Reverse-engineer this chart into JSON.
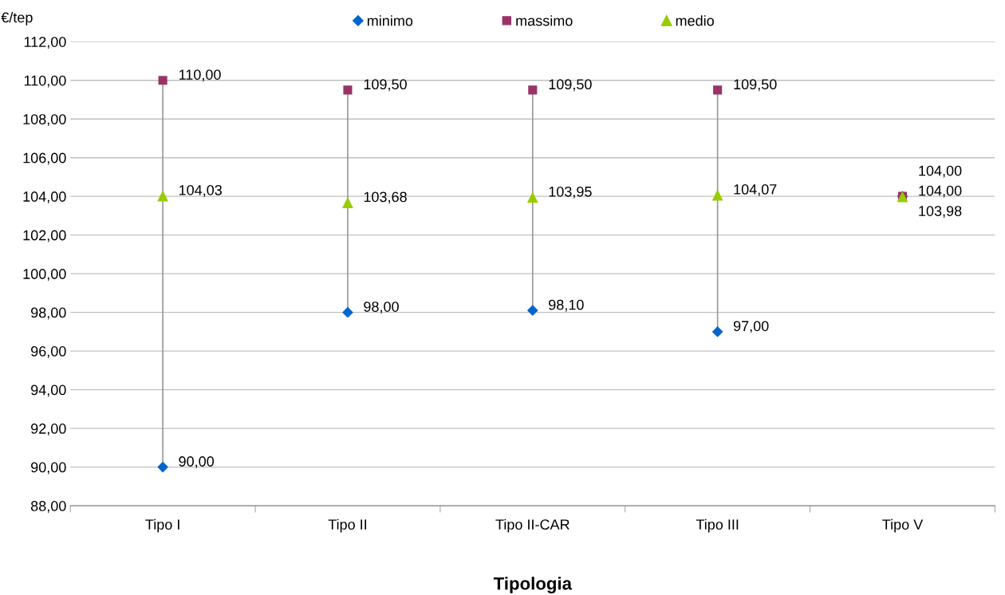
{
  "chart_data": {
    "type": "scatter",
    "ylabel": "€/tep",
    "xlabel": "Tipologia",
    "categories": [
      "Tipo I",
      "Tipo II",
      "Tipo II-CAR",
      "Tipo III",
      "Tipo V"
    ],
    "series": [
      {
        "name": "minimo",
        "color": "#0066cc",
        "marker": "diamond",
        "values": [
          90.0,
          98.0,
          98.1,
          97.0,
          104.0
        ],
        "value_labels": [
          "90,00",
          "98,00",
          "98,10",
          "97,00",
          "104,00"
        ]
      },
      {
        "name": "massimo",
        "color": "#993366",
        "marker": "square",
        "values": [
          110.0,
          109.5,
          109.5,
          109.5,
          104.0
        ],
        "value_labels": [
          "110,00",
          "109,50",
          "109,50",
          "109,50",
          "104,00"
        ]
      },
      {
        "name": "medio",
        "color": "#99cc00",
        "marker": "triangle",
        "values": [
          104.03,
          103.68,
          103.95,
          104.07,
          103.98
        ],
        "value_labels": [
          "104,03",
          "103,68",
          "103,95",
          "104,07",
          "103,98"
        ]
      }
    ],
    "ylim": [
      88,
      112
    ],
    "yticks": [
      {
        "value": 88,
        "label": "88,00"
      },
      {
        "value": 90,
        "label": "90,00"
      },
      {
        "value": 92,
        "label": "92,00"
      },
      {
        "value": 94,
        "label": "94,00"
      },
      {
        "value": 96,
        "label": "96,00"
      },
      {
        "value": 98,
        "label": "98,00"
      },
      {
        "value": 100,
        "label": "100,00"
      },
      {
        "value": 102,
        "label": "102,00"
      },
      {
        "value": 104,
        "label": "104,00"
      },
      {
        "value": 106,
        "label": "106,00"
      },
      {
        "value": 108,
        "label": "108,00"
      },
      {
        "value": 110,
        "label": "110,00"
      },
      {
        "value": 112,
        "label": "112,00"
      }
    ],
    "grid": "y",
    "legend": "top"
  }
}
